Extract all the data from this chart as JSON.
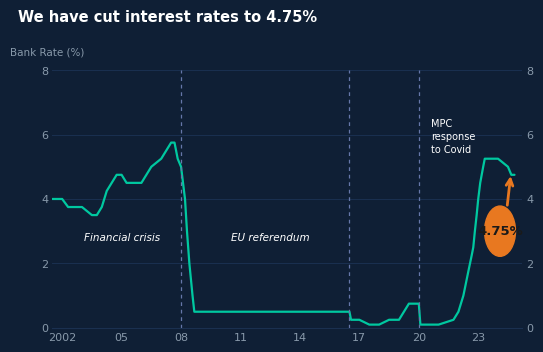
{
  "title": "We have cut interest rates to 4.75%",
  "ylabel": "Bank Rate (%)",
  "background_color": "#0f1f35",
  "line_color": "#00c8a0",
  "text_color": "#ffffff",
  "tick_color": "#8899aa",
  "grid_color": "#1a3050",
  "annotation_bubble_color": "#e87820",
  "annotation_text": "4.75%",
  "vline_color": "#6677aa",
  "ylim": [
    0,
    8
  ],
  "xlim": [
    2001.5,
    2025.2
  ],
  "yticks": [
    0,
    2,
    4,
    6,
    8
  ],
  "xtick_labels": [
    "2002",
    "05",
    "08",
    "11",
    "14",
    "17",
    "20",
    "23"
  ],
  "xtick_positions": [
    2002,
    2005,
    2008,
    2011,
    2014,
    2017,
    2020,
    2023
  ],
  "vlines": [
    2008.0,
    2016.5,
    2020.0
  ],
  "series": [
    [
      2001.5,
      4.0
    ],
    [
      2002.0,
      4.0
    ],
    [
      2002.3,
      3.75
    ],
    [
      2003.0,
      3.75
    ],
    [
      2003.5,
      3.5
    ],
    [
      2003.75,
      3.5
    ],
    [
      2004.0,
      3.75
    ],
    [
      2004.25,
      4.25
    ],
    [
      2004.5,
      4.5
    ],
    [
      2004.75,
      4.75
    ],
    [
      2005.0,
      4.75
    ],
    [
      2005.25,
      4.5
    ],
    [
      2005.5,
      4.5
    ],
    [
      2006.0,
      4.5
    ],
    [
      2006.25,
      4.75
    ],
    [
      2006.5,
      5.0
    ],
    [
      2007.0,
      5.25
    ],
    [
      2007.25,
      5.5
    ],
    [
      2007.5,
      5.75
    ],
    [
      2007.67,
      5.75
    ],
    [
      2007.75,
      5.5
    ],
    [
      2007.83,
      5.25
    ],
    [
      2008.0,
      5.0
    ],
    [
      2008.1,
      4.5
    ],
    [
      2008.2,
      4.0
    ],
    [
      2008.3,
      3.0
    ],
    [
      2008.42,
      2.0
    ],
    [
      2008.5,
      1.5
    ],
    [
      2008.58,
      1.0
    ],
    [
      2008.67,
      0.5
    ],
    [
      2009.0,
      0.5
    ],
    [
      2016.0,
      0.5
    ],
    [
      2016.5,
      0.5
    ],
    [
      2016.58,
      0.25
    ],
    [
      2017.0,
      0.25
    ],
    [
      2017.5,
      0.1
    ],
    [
      2017.58,
      0.1
    ],
    [
      2018.0,
      0.1
    ],
    [
      2018.5,
      0.25
    ],
    [
      2018.58,
      0.25
    ],
    [
      2019.0,
      0.25
    ],
    [
      2019.5,
      0.75
    ],
    [
      2019.75,
      0.75
    ],
    [
      2020.0,
      0.75
    ],
    [
      2020.08,
      0.1
    ],
    [
      2020.2,
      0.1
    ],
    [
      2020.25,
      0.1
    ],
    [
      2021.0,
      0.1
    ],
    [
      2021.75,
      0.25
    ],
    [
      2022.0,
      0.5
    ],
    [
      2022.25,
      1.0
    ],
    [
      2022.5,
      1.75
    ],
    [
      2022.67,
      2.25
    ],
    [
      2022.75,
      2.5
    ],
    [
      2022.83,
      3.0
    ],
    [
      2022.92,
      3.5
    ],
    [
      2023.0,
      4.0
    ],
    [
      2023.1,
      4.5
    ],
    [
      2023.25,
      5.0
    ],
    [
      2023.33,
      5.25
    ],
    [
      2023.5,
      5.25
    ],
    [
      2023.58,
      5.25
    ],
    [
      2023.83,
      5.25
    ],
    [
      2024.0,
      5.25
    ],
    [
      2024.5,
      5.0
    ],
    [
      2024.67,
      4.75
    ],
    [
      2024.83,
      4.75
    ]
  ]
}
